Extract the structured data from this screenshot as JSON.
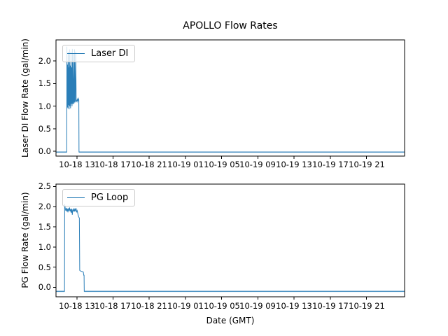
{
  "figure": {
    "title": "APOLLO Flow Rates",
    "xlabel": "Date (GMT)",
    "background_color": "#ffffff",
    "line_color": "#1f77b4",
    "spine_color": "#000000"
  },
  "chart_data": [
    {
      "type": "line",
      "ylabel": "Laser DI Flow Rate (gal/min)",
      "legend_label": "Laser DI",
      "legend_position": "upper left",
      "grid": false,
      "x_unit": "hours since 10-18 00:00 GMT",
      "xlim": [
        10.7,
        49.2
      ],
      "ylim": [
        -0.11,
        2.47
      ],
      "yticks": [
        0.0,
        0.5,
        1.0,
        1.5,
        2.0
      ],
      "xtick_hours": [
        13,
        17,
        21,
        25,
        29,
        33,
        37,
        41,
        45
      ],
      "xtick_labels": [
        "10-18 13",
        "10-18 17",
        "10-18 21",
        "10-19 01",
        "10-19 05",
        "10-19 09",
        "10-19 13",
        "10-19 17",
        "10-19 21"
      ],
      "series": [
        {
          "name": "Laser DI",
          "color": "#1f77b4",
          "points": [
            [
              10.7,
              -0.02
            ],
            [
              11.89,
              -0.02
            ],
            [
              11.9,
              2.32
            ],
            [
              11.93,
              1.78
            ],
            [
              11.96,
              0.97
            ],
            [
              11.99,
              1.92
            ],
            [
              12.02,
              0.95
            ],
            [
              12.06,
              2.2
            ],
            [
              12.09,
              1.02
            ],
            [
              12.12,
              1.86
            ],
            [
              12.15,
              0.93
            ],
            [
              12.19,
              2.26
            ],
            [
              12.23,
              1.0
            ],
            [
              12.27,
              1.9
            ],
            [
              12.31,
              0.95
            ],
            [
              12.35,
              2.21
            ],
            [
              12.39,
              1.05
            ],
            [
              12.43,
              1.86
            ],
            [
              12.47,
              1.0
            ],
            [
              12.51,
              2.27
            ],
            [
              12.55,
              1.05
            ],
            [
              12.59,
              1.1
            ],
            [
              12.63,
              2.16
            ],
            [
              12.67,
              1.05
            ],
            [
              12.71,
              1.1
            ],
            [
              12.75,
              2.26
            ],
            [
              12.79,
              1.08
            ],
            [
              12.83,
              1.12
            ],
            [
              12.88,
              2.21
            ],
            [
              12.93,
              1.1
            ],
            [
              12.97,
              1.13
            ],
            [
              13.02,
              1.1
            ],
            [
              13.07,
              1.15
            ],
            [
              13.12,
              1.12
            ],
            [
              13.17,
              1.17
            ],
            [
              13.22,
              1.14
            ],
            [
              13.24,
              -0.02
            ],
            [
              49.2,
              -0.02
            ]
          ],
          "noisy_baseline_segments": [
            [
              10.7,
              11.89,
              -0.02
            ],
            [
              13.24,
              49.2,
              -0.02
            ]
          ]
        }
      ]
    },
    {
      "type": "line",
      "ylabel": "PG Flow Rate (gal/min)",
      "legend_label": "PG Loop",
      "legend_position": "upper left",
      "grid": false,
      "x_unit": "hours since 10-18 00:00 GMT",
      "xlim": [
        10.7,
        49.2
      ],
      "ylim": [
        -0.235,
        2.56
      ],
      "yticks": [
        0.0,
        0.5,
        1.0,
        1.5,
        2.0,
        2.5
      ],
      "xtick_hours": [
        13,
        17,
        21,
        25,
        29,
        33,
        37,
        41,
        45
      ],
      "xtick_labels": [
        "10-18 13",
        "10-18 17",
        "10-18 21",
        "10-19 01",
        "10-19 05",
        "10-19 09",
        "10-19 13",
        "10-19 17",
        "10-19 21"
      ],
      "series": [
        {
          "name": "PG Loop",
          "color": "#1f77b4",
          "points": [
            [
              10.7,
              -0.1
            ],
            [
              11.64,
              -0.1
            ],
            [
              11.66,
              2.06
            ],
            [
              11.72,
              1.96
            ],
            [
              11.78,
              1.9
            ],
            [
              11.84,
              1.97
            ],
            [
              11.9,
              1.88
            ],
            [
              11.96,
              1.95
            ],
            [
              12.02,
              1.86
            ],
            [
              12.08,
              1.96
            ],
            [
              12.14,
              1.9
            ],
            [
              12.2,
              1.98
            ],
            [
              12.26,
              1.88
            ],
            [
              12.32,
              1.94
            ],
            [
              12.38,
              1.85
            ],
            [
              12.44,
              1.95
            ],
            [
              12.5,
              1.8
            ],
            [
              12.56,
              1.93
            ],
            [
              12.62,
              1.88
            ],
            [
              12.68,
              1.96
            ],
            [
              12.74,
              1.88
            ],
            [
              12.8,
              1.94
            ],
            [
              12.86,
              1.9
            ],
            [
              12.92,
              1.96
            ],
            [
              12.98,
              1.86
            ],
            [
              13.04,
              1.9
            ],
            [
              13.1,
              1.84
            ],
            [
              13.16,
              1.78
            ],
            [
              13.22,
              1.74
            ],
            [
              13.28,
              1.72
            ],
            [
              13.32,
              0.42
            ],
            [
              13.45,
              0.4
            ],
            [
              13.6,
              0.39
            ],
            [
              13.72,
              0.38
            ],
            [
              13.76,
              0.3
            ],
            [
              13.8,
              0.3
            ],
            [
              13.82,
              -0.1
            ],
            [
              49.2,
              -0.1
            ]
          ],
          "noisy_baseline_segments": [
            [
              10.7,
              11.64,
              -0.1
            ],
            [
              13.82,
              49.2,
              -0.1
            ]
          ]
        }
      ]
    }
  ]
}
